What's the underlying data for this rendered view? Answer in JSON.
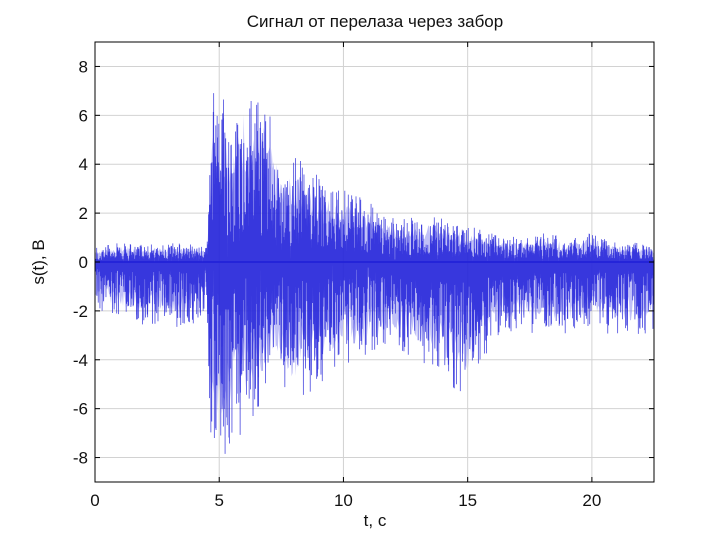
{
  "chart_data": {
    "type": "line",
    "title": "Сигнал от перелаза через забор",
    "xlabel": "t, c",
    "ylabel": "s(t), В",
    "xlim": [
      0,
      22.5
    ],
    "ylim": [
      -9,
      9
    ],
    "xticks": [
      0,
      5,
      10,
      15,
      20
    ],
    "yticks": [
      -8,
      -6,
      -4,
      -2,
      0,
      2,
      4,
      6,
      8
    ],
    "grid": true,
    "legend": "none",
    "colors": {
      "signal": "#1f1fd8",
      "envelope": "#8c8cf0",
      "grid": "#d2d2d2",
      "axes": "#000000"
    },
    "series": [
      {
        "x": [
          0,
          1,
          2,
          3,
          4,
          4.5,
          4.6,
          4.8,
          5,
          5.3,
          5.6,
          6,
          6.4,
          6.8,
          7.2,
          7.6,
          8,
          9,
          10,
          11,
          12,
          13,
          14,
          15,
          16,
          17,
          18,
          19,
          20,
          21,
          22,
          22.5
        ],
        "y_max": [
          0.6,
          0.8,
          0.7,
          0.8,
          0.7,
          0.6,
          4.5,
          7.8,
          6.8,
          7.0,
          6.0,
          8.0,
          6.5,
          7.0,
          5.5,
          4.0,
          4.5,
          3.5,
          3.0,
          2.5,
          1.8,
          2.0,
          1.8,
          1.5,
          1.2,
          1.0,
          1.2,
          1.0,
          1.2,
          0.8,
          0.8,
          0.6
        ],
        "y_min": [
          -2.0,
          -2.4,
          -2.6,
          -2.8,
          -2.5,
          -2.0,
          -7.0,
          -7.8,
          -7.8,
          -8.0,
          -7.2,
          -7.0,
          -6.5,
          -5.8,
          -4.8,
          -5.5,
          -6.0,
          -5.0,
          -4.2,
          -4.0,
          -3.5,
          -4.0,
          -5.0,
          -5.5,
          -3.2,
          -2.8,
          -3.0,
          -3.0,
          -2.8,
          -3.0,
          -3.0,
          -2.8
        ]
      }
    ]
  }
}
